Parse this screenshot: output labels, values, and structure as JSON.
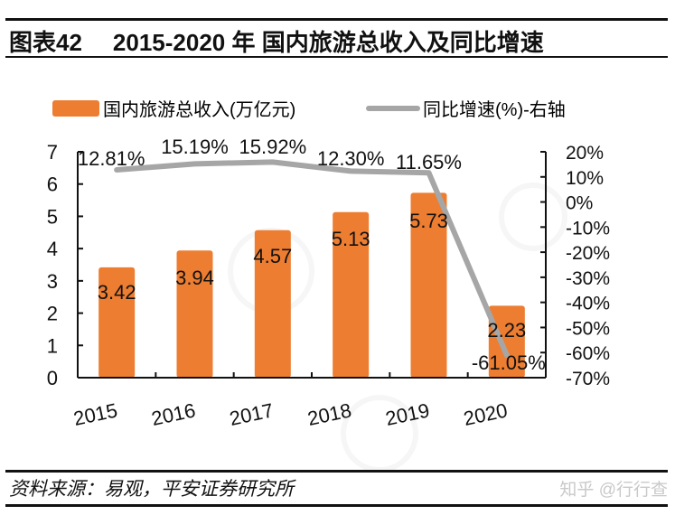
{
  "header": {
    "figure_label": "图表42",
    "title": "2015-2020 年 国内旅游总收入及同比增速"
  },
  "footer": {
    "source": "资料来源：易观，平安证券研究所",
    "credit": "知乎 @行行查"
  },
  "colors": {
    "bar": "#ED7D31",
    "line": "#A6A6A6",
    "axis": "#111111",
    "text": "#111111"
  },
  "chart_data": {
    "type": "bar",
    "title": "2015-2020 年 国内旅游总收入及同比增速",
    "categories": [
      "2015",
      "2016",
      "2017",
      "2018",
      "2019",
      "2020"
    ],
    "series": [
      {
        "name": "国内旅游总收入(万亿元)",
        "type": "bar",
        "axis": "left",
        "values": [
          3.42,
          3.94,
          4.57,
          5.13,
          5.73,
          2.23
        ],
        "labels": [
          "3.42",
          "3.94",
          "4.57",
          "5.13",
          "5.73",
          "2.23"
        ]
      },
      {
        "name": "同比增速(%)-右轴",
        "type": "line",
        "axis": "right",
        "values": [
          12.81,
          15.19,
          15.92,
          12.3,
          11.65,
          -61.05
        ],
        "labels": [
          "12.81%",
          "15.19%",
          "15.92%",
          "12.30%",
          "11.65%",
          "-61.05%"
        ]
      }
    ],
    "left_axis": {
      "ylim": [
        0,
        7
      ],
      "ticks": [
        0,
        1,
        2,
        3,
        4,
        5,
        6,
        7
      ],
      "tick_labels": [
        "0",
        "1",
        "2",
        "3",
        "4",
        "5",
        "6",
        "7"
      ]
    },
    "right_axis": {
      "ylim": [
        -70,
        20
      ],
      "ticks": [
        20,
        10,
        0,
        -10,
        -20,
        -30,
        -40,
        -50,
        -60,
        -70
      ],
      "tick_labels": [
        "20%",
        "10%",
        "0%",
        "-10%",
        "-20%",
        "-30%",
        "-40%",
        "-50%",
        "-60%",
        "-70%"
      ]
    },
    "xlabel": "",
    "ylabel": "",
    "grid": false,
    "legend": {
      "position": "top",
      "entries": [
        "国内旅游总收入(万亿元)",
        "同比增速(%)-右轴"
      ]
    }
  }
}
